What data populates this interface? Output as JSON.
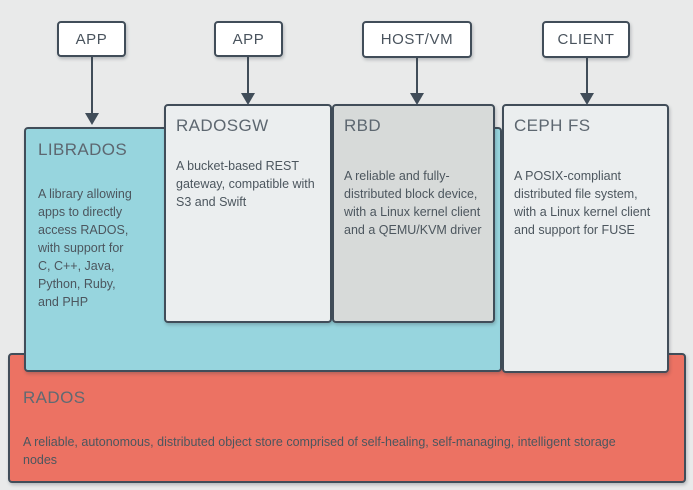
{
  "colors": {
    "background": "#e9eaea",
    "outline": "#414d59",
    "top_node_fill": "#ffffff",
    "librados_fill": "#97d5de",
    "radosgw_fill": "#ebeeef",
    "rbd_fill": "#d7dad9",
    "cephfs_fill": "#ebeeef",
    "rados_fill": "#ec7263",
    "title_text": "#5d6770",
    "body_text": "#4c565e"
  },
  "top_nodes": [
    {
      "label": "APP"
    },
    {
      "label": "APP"
    },
    {
      "label": "HOST/VM"
    },
    {
      "label": "CLIENT"
    }
  ],
  "boxes": {
    "librados": {
      "title": "LIBRADOS",
      "description": "A library allowing\napps to directly\naccess RADOS,\nwith support for\nC, C++, Java,\nPython, Ruby,\nand PHP"
    },
    "radosgw": {
      "title": "RADOSGW",
      "description": "A bucket-based REST\ngateway, compatible with\nS3 and Swift"
    },
    "rbd": {
      "title": "RBD",
      "description": "A reliable and fully-\ndistributed block device,\nwith a Linux kernel client\nand a QEMU/KVM driver"
    },
    "cephfs": {
      "title": "CEPH FS",
      "description": "A POSIX-compliant\ndistributed file system,\nwith a Linux kernel client\nand support for FUSE"
    },
    "rados": {
      "title": "RADOS",
      "description": "A reliable, autonomous, distributed object store comprised of self-healing, self-managing, intelligent storage\nnodes"
    }
  }
}
